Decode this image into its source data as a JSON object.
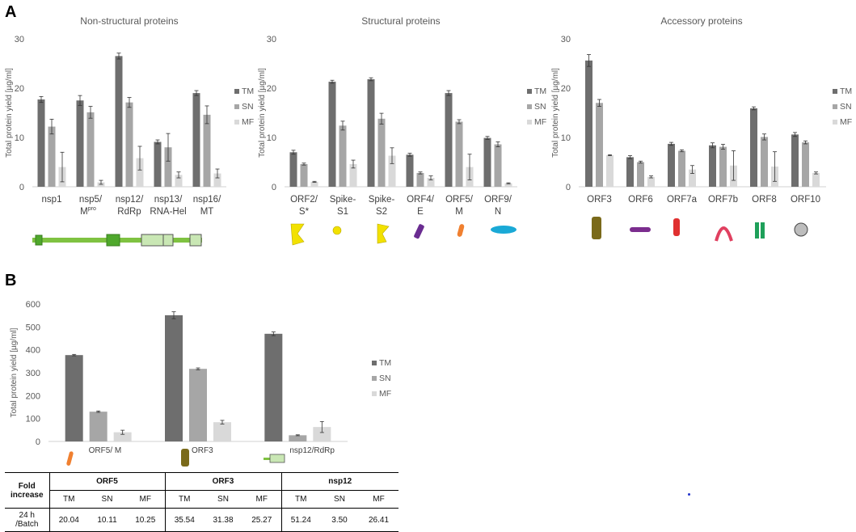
{
  "panels": {
    "a": "A",
    "b": "B"
  },
  "colors": {
    "TM": "#6e6e6e",
    "SN": "#a6a6a6",
    "MF": "#d9d9d9"
  },
  "icon_colors": {
    "spike": "#f2e100",
    "envelope": "#6a2c91",
    "membrane": "#f08030",
    "nucleocapsid": "#1aa9d6",
    "orf3": "#7a6a1a",
    "orf6": "#7b2d8e",
    "orf7a": "#e03030",
    "orf7b": "#e04060",
    "orf8": "#1fa05a",
    "orf10": "#bdbdbd",
    "genome": "#7fc241",
    "genome_light": "#c9e7b4"
  },
  "legend": [
    "TM",
    "SN",
    "MF"
  ],
  "chart_data": [
    {
      "type": "bar",
      "title": "Non-structural proteins",
      "ylabel": "Total protein yield [µg/ml]",
      "ylim": [
        0,
        30
      ],
      "yticks": [
        "0",
        "10",
        "20",
        "30"
      ],
      "categories": [
        [
          "nsp1"
        ],
        [
          "nsp5/",
          "M",
          "pro"
        ],
        [
          "nsp12/",
          "RdRp"
        ],
        [
          "nsp13/",
          "RNA-Hel"
        ],
        [
          "nsp16/",
          "MT"
        ]
      ],
      "series": [
        {
          "name": "TM",
          "values": [
            17.7,
            17.5,
            26.5,
            9.1,
            19.0
          ],
          "errors": [
            0.6,
            1.0,
            0.6,
            0.4,
            0.5
          ]
        },
        {
          "name": "SN",
          "values": [
            12.2,
            15.1,
            17.1,
            8.0,
            14.6
          ],
          "errors": [
            1.5,
            1.2,
            1.0,
            2.8,
            1.8
          ]
        },
        {
          "name": "MF",
          "values": [
            4.0,
            0.9,
            5.8,
            2.4,
            2.7
          ],
          "errors": [
            3.0,
            0.4,
            2.4,
            0.6,
            0.9
          ]
        }
      ]
    },
    {
      "type": "bar",
      "title": "Structural proteins",
      "ylabel": "Total protein yield [µg/ml]",
      "ylim": [
        0,
        30
      ],
      "yticks": [
        "0",
        "10",
        "20",
        "30"
      ],
      "categories": [
        [
          "ORF2/",
          "S*"
        ],
        [
          "Spike-",
          "S1"
        ],
        [
          "Spike-",
          "S2"
        ],
        [
          "ORF4/",
          "E"
        ],
        [
          "ORF5/",
          "M"
        ],
        [
          "ORF9/",
          "N"
        ]
      ],
      "series": [
        {
          "name": "TM",
          "values": [
            7.0,
            21.3,
            21.8,
            6.5,
            19.0,
            9.9
          ],
          "errors": [
            0.4,
            0.3,
            0.3,
            0.3,
            0.5,
            0.3
          ]
        },
        {
          "name": "SN",
          "values": [
            4.6,
            12.4,
            13.8,
            2.8,
            13.2,
            8.6
          ],
          "errors": [
            0.2,
            0.9,
            1.1,
            0.2,
            0.4,
            0.5
          ]
        },
        {
          "name": "MF",
          "values": [
            1.0,
            4.6,
            6.3,
            1.8,
            4.0,
            0.7
          ],
          "errors": [
            0.1,
            0.8,
            1.6,
            0.4,
            2.6,
            0.1
          ]
        }
      ]
    },
    {
      "type": "bar",
      "title": "Accessory proteins",
      "ylabel": "Total protein yield [µg/ml]",
      "ylim": [
        0,
        30
      ],
      "yticks": [
        "0",
        "10",
        "20",
        "30"
      ],
      "categories": [
        [
          "ORF3"
        ],
        [
          "ORF6"
        ],
        [
          "ORF7a"
        ],
        [
          "ORF7b"
        ],
        [
          "ORF8"
        ],
        [
          "ORF10"
        ]
      ],
      "series": [
        {
          "name": "TM",
          "values": [
            25.6,
            6.0,
            8.7,
            8.4,
            15.9,
            10.6
          ],
          "errors": [
            1.2,
            0.3,
            0.3,
            0.5,
            0.3,
            0.4
          ]
        },
        {
          "name": "SN",
          "values": [
            17.0,
            5.0,
            7.3,
            8.1,
            10.1,
            9.0
          ],
          "errors": [
            0.7,
            0.2,
            0.2,
            0.5,
            0.6,
            0.3
          ]
        },
        {
          "name": "MF",
          "values": [
            6.4,
            2.0,
            3.5,
            4.3,
            4.1,
            2.8
          ],
          "errors": [
            0.1,
            0.2,
            0.8,
            3.0,
            3.0,
            0.2
          ]
        }
      ]
    },
    {
      "type": "bar",
      "title": "",
      "ylabel": "Total protein yield [µg/ml]",
      "ylim": [
        0,
        600
      ],
      "yticks": [
        "0",
        "100",
        "200",
        "300",
        "400",
        "500",
        "600"
      ],
      "categories": [
        [
          "ORF5/ M"
        ],
        [
          "ORF3"
        ],
        [
          "nsp12/RdRp"
        ]
      ],
      "series": [
        {
          "name": "TM",
          "values": [
            377,
            551,
            470
          ],
          "errors": [
            3,
            15,
            8
          ]
        },
        {
          "name": "SN",
          "values": [
            130,
            317,
            27
          ],
          "errors": [
            3,
            4,
            2
          ]
        },
        {
          "name": "MF",
          "values": [
            40,
            84,
            63
          ],
          "errors": [
            9,
            8,
            24
          ]
        }
      ]
    }
  ],
  "fold_table": {
    "header_label": [
      "Fold",
      "increase"
    ],
    "groups": [
      "ORF5",
      "ORF3",
      "nsp12"
    ],
    "sub": [
      "TM",
      "SN",
      "MF"
    ],
    "row_label": [
      "24 h",
      "/Batch"
    ],
    "values": [
      "20.04",
      "10.11",
      "10.25",
      "35.54",
      "31.38",
      "25.27",
      "51.24",
      "3.50",
      "26.41"
    ]
  }
}
